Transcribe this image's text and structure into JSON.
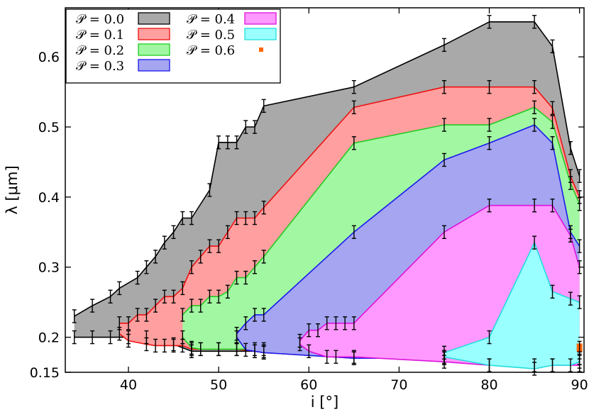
{
  "chart_data": {
    "type": "area",
    "title": "",
    "xlabel": "i [°]",
    "ylabel": "λ [μm]",
    "xlim": [
      33,
      90.5
    ],
    "ylim": [
      0.15,
      0.67
    ],
    "xticks": [
      40,
      50,
      60,
      70,
      80,
      90
    ],
    "yticks": [
      0.15,
      0.2,
      0.3,
      0.4,
      0.5,
      0.6
    ],
    "ytick_labels": [
      "0.15",
      "0.2",
      "0.3",
      "0.4",
      "0.5",
      "0.6"
    ],
    "legend_position": "top-left",
    "legend_prefix": "𝒫 =",
    "series": [
      {
        "name": "0.0",
        "color": "#000000",
        "fill": "#a9a9a9",
        "upper": [
          [
            34,
            0.23
          ],
          [
            36,
            0.245
          ],
          [
            38,
            0.258
          ],
          [
            39,
            0.27
          ],
          [
            41,
            0.285
          ],
          [
            42,
            0.3
          ],
          [
            43,
            0.315
          ],
          [
            44,
            0.335
          ],
          [
            45,
            0.35
          ],
          [
            46,
            0.37
          ],
          [
            47,
            0.37
          ],
          [
            49,
            0.41
          ],
          [
            50,
            0.478
          ],
          [
            51,
            0.478
          ],
          [
            52,
            0.478
          ],
          [
            53,
            0.5
          ],
          [
            54,
            0.5
          ],
          [
            55,
            0.53
          ],
          [
            65,
            0.557
          ],
          [
            75,
            0.617
          ],
          [
            80,
            0.65
          ],
          [
            85,
            0.65
          ],
          [
            87,
            0.615
          ],
          [
            89,
            0.47
          ],
          [
            90,
            0.43
          ]
        ],
        "lower": [
          [
            34,
            0.2
          ],
          [
            36,
            0.2
          ],
          [
            38,
            0.2
          ],
          [
            40,
            0.2
          ],
          [
            42,
            0.2
          ],
          [
            45,
            0.19
          ],
          [
            47,
            0.18
          ],
          [
            55,
            0.18
          ],
          [
            75,
            0.17
          ],
          [
            90,
            0.17
          ]
        ]
      },
      {
        "name": "0.1",
        "color": "#ee1111",
        "fill": "#ff9f9f",
        "upper": [
          [
            39,
            0.22
          ],
          [
            40,
            0.22
          ],
          [
            41,
            0.232
          ],
          [
            42,
            0.232
          ],
          [
            43,
            0.245
          ],
          [
            44,
            0.258
          ],
          [
            45,
            0.258
          ],
          [
            46,
            0.27
          ],
          [
            47,
            0.3
          ],
          [
            48,
            0.315
          ],
          [
            49,
            0.33
          ],
          [
            50,
            0.33
          ],
          [
            51,
            0.35
          ],
          [
            52,
            0.37
          ],
          [
            53,
            0.37
          ],
          [
            54,
            0.37
          ],
          [
            55,
            0.385
          ],
          [
            65,
            0.528
          ],
          [
            75,
            0.557
          ],
          [
            80,
            0.557
          ],
          [
            85,
            0.557
          ],
          [
            87,
            0.527
          ],
          [
            89,
            0.43
          ],
          [
            90,
            0.4
          ]
        ],
        "lower": [
          [
            39,
            0.205
          ],
          [
            40,
            0.195
          ],
          [
            42,
            0.19
          ],
          [
            43,
            0.188
          ],
          [
            44,
            0.188
          ],
          [
            45,
            0.188
          ],
          [
            46,
            0.188
          ],
          [
            47,
            0.183
          ],
          [
            48,
            0.183
          ],
          [
            50,
            0.183
          ],
          [
            52,
            0.183
          ],
          [
            54,
            0.18
          ],
          [
            55,
            0.178
          ],
          [
            65,
            0.17
          ],
          [
            75,
            0.17
          ],
          [
            90,
            0.17
          ]
        ]
      },
      {
        "name": "0.2",
        "color": "#22cc22",
        "fill": "#a2f7a2",
        "upper": [
          [
            46,
            0.232
          ],
          [
            47,
            0.245
          ],
          [
            48,
            0.245
          ],
          [
            49,
            0.258
          ],
          [
            50,
            0.258
          ],
          [
            51,
            0.265
          ],
          [
            52,
            0.285
          ],
          [
            53,
            0.285
          ],
          [
            54,
            0.3
          ],
          [
            55,
            0.315
          ],
          [
            65,
            0.477
          ],
          [
            75,
            0.503
          ],
          [
            80,
            0.503
          ],
          [
            85,
            0.528
          ],
          [
            87,
            0.507
          ],
          [
            89,
            0.42
          ],
          [
            90,
            0.39
          ]
        ],
        "lower": [
          [
            46,
            0.2
          ],
          [
            47,
            0.185
          ],
          [
            48,
            0.183
          ],
          [
            50,
            0.183
          ],
          [
            52,
            0.183
          ],
          [
            54,
            0.183
          ],
          [
            55,
            0.183
          ],
          [
            65,
            0.17
          ],
          [
            75,
            0.17
          ],
          [
            90,
            0.17
          ]
        ]
      },
      {
        "name": "0.3",
        "color": "#1a1aee",
        "fill": "#a5a5f2",
        "upper": [
          [
            52,
            0.205
          ],
          [
            53,
            0.22
          ],
          [
            54,
            0.232
          ],
          [
            55,
            0.232
          ],
          [
            65,
            0.35
          ],
          [
            75,
            0.453
          ],
          [
            80,
            0.477
          ],
          [
            85,
            0.503
          ],
          [
            87,
            0.477
          ],
          [
            89,
            0.35
          ],
          [
            90,
            0.33
          ]
        ],
        "lower": [
          [
            52,
            0.2
          ],
          [
            53,
            0.182
          ],
          [
            55,
            0.178
          ],
          [
            65,
            0.17
          ],
          [
            75,
            0.17
          ],
          [
            90,
            0.17
          ]
        ]
      },
      {
        "name": "0.4",
        "color": "#dd11dd",
        "fill": "#ff99ff",
        "upper": [
          [
            59,
            0.195
          ],
          [
            60,
            0.21
          ],
          [
            61,
            0.21
          ],
          [
            62,
            0.22
          ],
          [
            63,
            0.22
          ],
          [
            64,
            0.22
          ],
          [
            65,
            0.22
          ],
          [
            75,
            0.35
          ],
          [
            80,
            0.388
          ],
          [
            85,
            0.388
          ],
          [
            87,
            0.388
          ],
          [
            89,
            0.345
          ],
          [
            90,
            0.3
          ]
        ],
        "lower": [
          [
            59,
            0.19
          ],
          [
            60,
            0.18
          ],
          [
            62,
            0.172
          ],
          [
            63,
            0.172
          ],
          [
            65,
            0.172
          ],
          [
            75,
            0.165
          ],
          [
            80,
            0.16
          ],
          [
            85,
            0.16
          ],
          [
            87,
            0.16
          ],
          [
            90,
            0.16
          ]
        ]
      },
      {
        "name": "0.5",
        "color": "#22dddd",
        "fill": "#99ffff",
        "upper": [
          [
            75,
            0.178
          ],
          [
            80,
            0.2
          ],
          [
            85,
            0.335
          ],
          [
            87,
            0.265
          ],
          [
            89,
            0.255
          ],
          [
            90,
            0.25
          ]
        ],
        "lower": [
          [
            75,
            0.172
          ],
          [
            80,
            0.16
          ],
          [
            85,
            0.155
          ],
          [
            87,
            0.16
          ],
          [
            89,
            0.16
          ],
          [
            90,
            0.165
          ]
        ]
      },
      {
        "name": "0.6",
        "color": "#ff6600",
        "fill": "#ff6600",
        "points": [
          [
            90,
            0.185
          ]
        ]
      }
    ]
  }
}
